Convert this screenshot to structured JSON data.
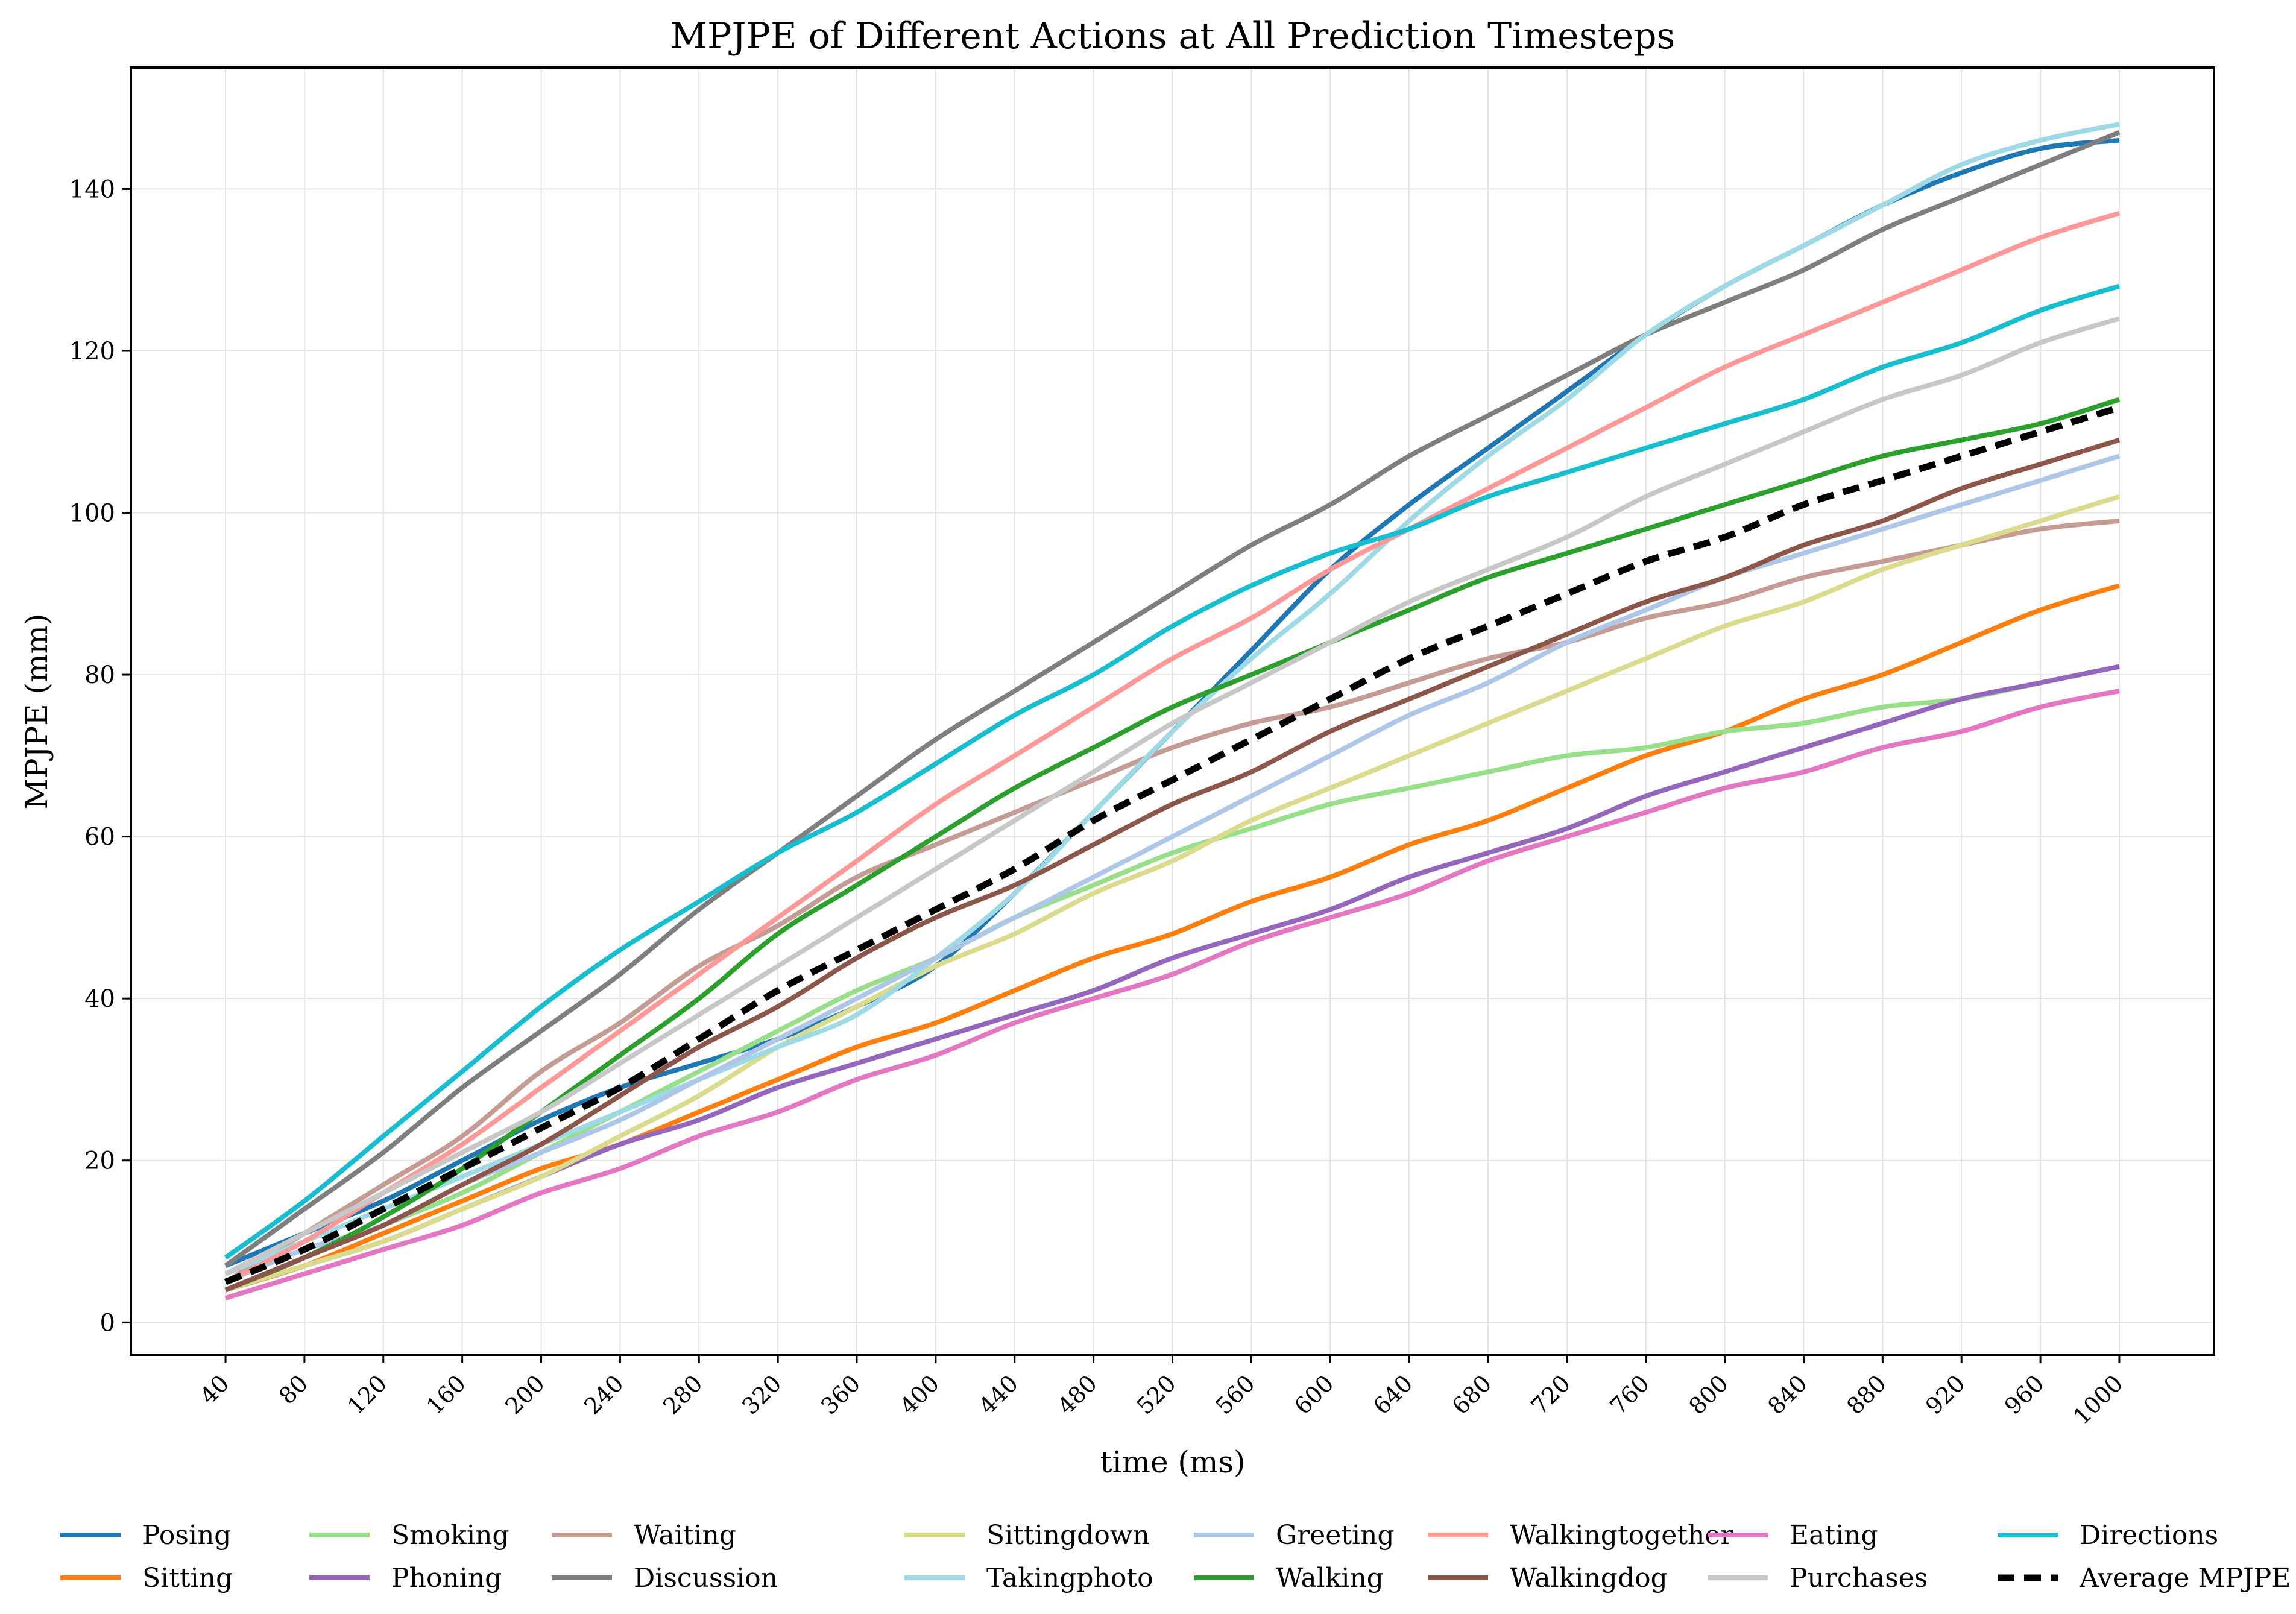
{
  "chart_data": {
    "type": "line",
    "title": "MPJPE of Different Actions at All Prediction Timesteps",
    "xlabel": "time (ms)",
    "ylabel": "MPJPE (mm)",
    "x": [
      40,
      80,
      120,
      160,
      200,
      240,
      280,
      320,
      360,
      400,
      440,
      480,
      520,
      560,
      600,
      640,
      680,
      720,
      760,
      800,
      840,
      880,
      920,
      960,
      1000
    ],
    "xlim": [
      -8,
      1048
    ],
    "ylim": [
      -4,
      155
    ],
    "yticks": [
      0,
      20,
      40,
      60,
      80,
      100,
      120,
      140
    ],
    "grid": true,
    "legend_position": "bottom",
    "series": [
      {
        "name": "Posing",
        "color": "#1f77b4",
        "dashed": false,
        "values": [
          7,
          11,
          15,
          20,
          25,
          29,
          32,
          35,
          39,
          44,
          53,
          63,
          73,
          83,
          93,
          101,
          108,
          115,
          122,
          128,
          133,
          138,
          142,
          145,
          146
        ]
      },
      {
        "name": "Sitting",
        "color": "#ff7f0e",
        "dashed": false,
        "values": [
          4,
          7,
          11,
          15,
          19,
          22,
          26,
          30,
          34,
          37,
          41,
          45,
          48,
          52,
          55,
          59,
          62,
          66,
          70,
          73,
          77,
          80,
          84,
          88,
          91
        ]
      },
      {
        "name": "Smoking",
        "color": "#98df8a",
        "dashed": false,
        "values": [
          4,
          8,
          12,
          16,
          21,
          26,
          31,
          36,
          41,
          45,
          50,
          54,
          58,
          61,
          64,
          66,
          68,
          70,
          71,
          73,
          74,
          76,
          77,
          79,
          81
        ]
      },
      {
        "name": "Phoning",
        "color": "#9467bd",
        "dashed": false,
        "values": [
          4,
          7,
          10,
          14,
          18,
          22,
          25,
          29,
          32,
          35,
          38,
          41,
          45,
          48,
          51,
          55,
          58,
          61,
          65,
          68,
          71,
          74,
          77,
          79,
          81
        ]
      },
      {
        "name": "Waiting",
        "color": "#c49c94",
        "dashed": false,
        "values": [
          5,
          11,
          17,
          23,
          31,
          37,
          44,
          49,
          55,
          59,
          63,
          67,
          71,
          74,
          76,
          79,
          82,
          84,
          87,
          89,
          92,
          94,
          96,
          98,
          99
        ]
      },
      {
        "name": "Discussion",
        "color": "#7f7f7f",
        "dashed": false,
        "values": [
          7,
          14,
          21,
          29,
          36,
          43,
          51,
          58,
          65,
          72,
          78,
          84,
          90,
          96,
          101,
          107,
          112,
          117,
          122,
          126,
          130,
          135,
          139,
          143,
          147
        ]
      },
      {
        "name": "Sittingdown",
        "color": "#dbdb8d",
        "dashed": false,
        "values": [
          4,
          7,
          10,
          14,
          18,
          23,
          28,
          34,
          39,
          44,
          48,
          53,
          57,
          62,
          66,
          70,
          74,
          78,
          82,
          86,
          89,
          93,
          96,
          99,
          102
        ]
      },
      {
        "name": "Takingphoto",
        "color": "#9edae5",
        "dashed": false,
        "values": [
          6,
          10,
          14,
          18,
          22,
          26,
          30,
          34,
          38,
          45,
          53,
          63,
          73,
          82,
          90,
          99,
          107,
          114,
          122,
          128,
          133,
          138,
          143,
          146,
          148
        ]
      },
      {
        "name": "Greeting",
        "color": "#aec7e8",
        "dashed": false,
        "values": [
          5,
          9,
          12,
          17,
          21,
          25,
          30,
          35,
          40,
          45,
          50,
          55,
          60,
          65,
          70,
          75,
          79,
          84,
          88,
          92,
          95,
          98,
          101,
          104,
          107
        ]
      },
      {
        "name": "Walking",
        "color": "#2ca02c",
        "dashed": false,
        "values": [
          4,
          8,
          13,
          19,
          26,
          33,
          40,
          48,
          54,
          60,
          66,
          71,
          76,
          80,
          84,
          88,
          92,
          95,
          98,
          101,
          104,
          107,
          109,
          111,
          114
        ]
      },
      {
        "name": "Walkingtogether",
        "color": "#ff9896",
        "dashed": false,
        "values": [
          5,
          10,
          16,
          22,
          29,
          36,
          43,
          50,
          57,
          64,
          70,
          76,
          82,
          87,
          93,
          98,
          103,
          108,
          113,
          118,
          122,
          126,
          130,
          134,
          137
        ]
      },
      {
        "name": "Walkingdog",
        "color": "#8c564b",
        "dashed": false,
        "values": [
          4,
          8,
          12,
          17,
          22,
          28,
          34,
          39,
          45,
          50,
          54,
          59,
          64,
          68,
          73,
          77,
          81,
          85,
          89,
          92,
          96,
          99,
          103,
          106,
          109
        ]
      },
      {
        "name": "Eating",
        "color": "#e377c2",
        "dashed": false,
        "values": [
          3,
          6,
          9,
          12,
          16,
          19,
          23,
          26,
          30,
          33,
          37,
          40,
          43,
          47,
          50,
          53,
          57,
          60,
          63,
          66,
          68,
          71,
          73,
          76,
          78
        ]
      },
      {
        "name": "Purchases",
        "color": "#c7c7c7",
        "dashed": false,
        "values": [
          6,
          11,
          16,
          21,
          26,
          32,
          38,
          44,
          50,
          56,
          62,
          68,
          74,
          79,
          84,
          89,
          93,
          97,
          102,
          106,
          110,
          114,
          117,
          121,
          124
        ]
      },
      {
        "name": "Directions",
        "color": "#17becf",
        "dashed": false,
        "values": [
          8,
          15,
          23,
          31,
          39,
          46,
          52,
          58,
          63,
          69,
          75,
          80,
          86,
          91,
          95,
          98,
          102,
          105,
          108,
          111,
          114,
          118,
          121,
          125,
          128
        ]
      },
      {
        "name": "Average MPJPE",
        "color": "#000000",
        "dashed": true,
        "values": [
          5,
          9,
          14,
          19,
          24,
          29,
          35,
          41,
          46,
          51,
          56,
          62,
          67,
          72,
          77,
          82,
          86,
          90,
          94,
          97,
          101,
          104,
          107,
          110,
          113
        ]
      }
    ]
  }
}
